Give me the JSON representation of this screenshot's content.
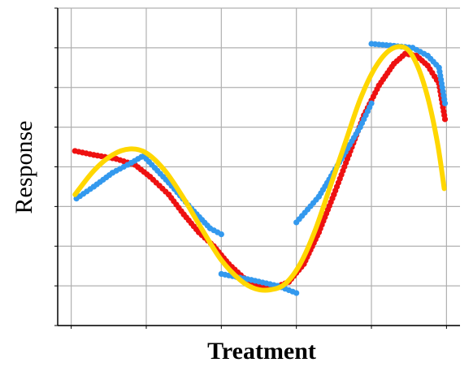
{
  "chart_data": {
    "type": "line",
    "title": "",
    "xlabel": "Treatment",
    "ylabel": "Response",
    "xlim": [
      -0.18,
      5.18
    ],
    "ylim": [
      0,
      8
    ],
    "x_ticks": [
      0,
      1,
      2,
      3,
      4,
      5
    ],
    "y_ticks": [
      0,
      1,
      2,
      3,
      4,
      5,
      6,
      7,
      8
    ],
    "grid": true,
    "tick_labels_visible": false,
    "series": [
      {
        "kind": "scatter",
        "color": "#ee1111",
        "points": [
          [
            0.05,
            4.4
          ],
          [
            0.3,
            4.3
          ],
          [
            0.6,
            4.2
          ],
          [
            0.85,
            4.05
          ],
          [
            1.05,
            3.75
          ],
          [
            1.3,
            3.3
          ],
          [
            1.5,
            2.8
          ],
          [
            1.7,
            2.35
          ],
          [
            1.9,
            2.0
          ],
          [
            2.1,
            1.55
          ],
          [
            2.3,
            1.2
          ],
          [
            2.5,
            1.0
          ],
          [
            2.7,
            0.95
          ],
          [
            2.9,
            1.1
          ],
          [
            3.1,
            1.55
          ],
          [
            3.3,
            2.35
          ],
          [
            3.5,
            3.3
          ],
          [
            3.7,
            4.3
          ],
          [
            3.9,
            5.3
          ],
          [
            4.1,
            6.05
          ],
          [
            4.3,
            6.6
          ],
          [
            4.45,
            6.85
          ],
          [
            4.6,
            6.8
          ],
          [
            4.75,
            6.55
          ],
          [
            4.9,
            6.1
          ],
          [
            4.98,
            5.2
          ]
        ]
      },
      {
        "kind": "scatter",
        "color": "#3399ee",
        "segments": [
          [
            [
              0.07,
              3.2
            ],
            [
              0.3,
              3.5
            ],
            [
              0.55,
              3.85
            ],
            [
              0.8,
              4.1
            ],
            [
              0.98,
              4.3
            ]
          ],
          [
            [
              1.0,
              4.2
            ],
            [
              1.3,
              3.6
            ],
            [
              1.6,
              2.95
            ],
            [
              1.85,
              2.45
            ],
            [
              2.0,
              2.3
            ]
          ],
          [
            [
              2.0,
              1.3
            ],
            [
              2.4,
              1.15
            ],
            [
              2.75,
              1.0
            ],
            [
              3.0,
              0.82
            ]
          ],
          [
            [
              3.0,
              2.6
            ],
            [
              3.3,
              3.25
            ],
            [
              3.6,
              4.2
            ],
            [
              3.85,
              5.0
            ],
            [
              4.0,
              5.6
            ]
          ],
          [
            [
              4.0,
              7.1
            ],
            [
              4.3,
              7.05
            ],
            [
              4.55,
              7.0
            ],
            [
              4.75,
              6.8
            ],
            [
              4.9,
              6.5
            ],
            [
              4.98,
              5.6
            ]
          ]
        ]
      },
      {
        "kind": "line",
        "color": "#ffd700",
        "points": [
          [
            0.05,
            3.3
          ],
          [
            0.3,
            3.9
          ],
          [
            0.55,
            4.3
          ],
          [
            0.78,
            4.45
          ],
          [
            1.0,
            4.35
          ],
          [
            1.25,
            3.9
          ],
          [
            1.5,
            3.2
          ],
          [
            1.75,
            2.4
          ],
          [
            2.0,
            1.65
          ],
          [
            2.25,
            1.15
          ],
          [
            2.45,
            0.93
          ],
          [
            2.65,
            0.9
          ],
          [
            2.85,
            1.05
          ],
          [
            3.05,
            1.55
          ],
          [
            3.25,
            2.4
          ],
          [
            3.45,
            3.5
          ],
          [
            3.65,
            4.6
          ],
          [
            3.85,
            5.7
          ],
          [
            4.05,
            6.5
          ],
          [
            4.25,
            6.95
          ],
          [
            4.45,
            7.0
          ],
          [
            4.6,
            6.6
          ],
          [
            4.75,
            5.75
          ],
          [
            4.88,
            4.6
          ],
          [
            4.97,
            3.45
          ]
        ]
      }
    ]
  }
}
